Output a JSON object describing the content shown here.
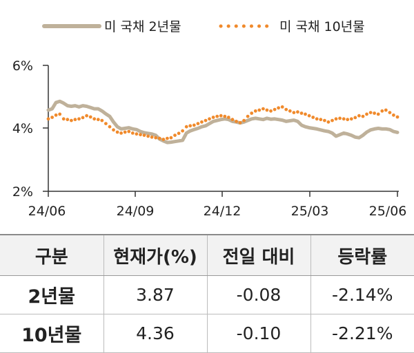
{
  "chart_data": {
    "type": "line",
    "x_labels": [
      "24/06",
      "24/09",
      "24/12",
      "25/03",
      "25/06"
    ],
    "y_ticks": [
      "6%",
      "4%",
      "2%"
    ],
    "ylim": [
      2,
      6
    ],
    "grid": false,
    "legend_placement": "top",
    "series": [
      {
        "name": "미 국채 2년물",
        "style": "solid",
        "color": "#bfb19a",
        "values": [
          4.58,
          4.62,
          4.82,
          4.86,
          4.8,
          4.72,
          4.7,
          4.72,
          4.68,
          4.72,
          4.7,
          4.66,
          4.62,
          4.62,
          4.55,
          4.46,
          4.38,
          4.2,
          4.05,
          3.98,
          4.0,
          4.02,
          3.98,
          3.96,
          3.9,
          3.86,
          3.84,
          3.82,
          3.78,
          3.66,
          3.6,
          3.55,
          3.56,
          3.58,
          3.6,
          3.62,
          3.85,
          3.92,
          3.96,
          4.0,
          4.05,
          4.08,
          4.15,
          4.22,
          4.25,
          4.28,
          4.3,
          4.28,
          4.22,
          4.2,
          4.17,
          4.2,
          4.25,
          4.3,
          4.32,
          4.3,
          4.28,
          4.32,
          4.29,
          4.3,
          4.28,
          4.26,
          4.22,
          4.24,
          4.26,
          4.22,
          4.1,
          4.05,
          4.02,
          4.0,
          3.98,
          3.95,
          3.92,
          3.9,
          3.85,
          3.75,
          3.8,
          3.85,
          3.82,
          3.78,
          3.72,
          3.7,
          3.78,
          3.88,
          3.95,
          3.98,
          4.0,
          3.98,
          3.98,
          3.96,
          3.9,
          3.87
        ]
      },
      {
        "name": "미 국채 10년물",
        "style": "dotted",
        "color": "#f08a2c",
        "values": [
          4.3,
          4.35,
          4.42,
          4.45,
          4.3,
          4.28,
          4.25,
          4.28,
          4.3,
          4.34,
          4.4,
          4.36,
          4.3,
          4.28,
          4.25,
          4.15,
          4.05,
          3.95,
          3.88,
          3.85,
          3.88,
          3.9,
          3.85,
          3.82,
          3.8,
          3.78,
          3.75,
          3.72,
          3.7,
          3.68,
          3.65,
          3.68,
          3.7,
          3.78,
          3.84,
          3.92,
          4.05,
          4.08,
          4.1,
          4.15,
          4.2,
          4.25,
          4.3,
          4.35,
          4.38,
          4.4,
          4.38,
          4.35,
          4.28,
          4.22,
          4.18,
          4.25,
          4.38,
          4.48,
          4.55,
          4.58,
          4.62,
          4.58,
          4.55,
          4.6,
          4.65,
          4.68,
          4.6,
          4.55,
          4.5,
          4.52,
          4.48,
          4.45,
          4.4,
          4.35,
          4.3,
          4.28,
          4.25,
          4.2,
          4.25,
          4.3,
          4.32,
          4.3,
          4.28,
          4.3,
          4.34,
          4.4,
          4.38,
          4.45,
          4.5,
          4.48,
          4.45,
          4.55,
          4.58,
          4.5,
          4.42,
          4.36
        ]
      }
    ]
  },
  "table": {
    "headers": [
      "구분",
      "현재가(%)",
      "전일 대비",
      "등락률"
    ],
    "rows": [
      {
        "label": "2년물",
        "current": "3.87",
        "change": "-0.08",
        "rate": "-2.14%"
      },
      {
        "label": "10년물",
        "current": "4.36",
        "change": "-0.10",
        "rate": "-2.21%"
      }
    ]
  }
}
